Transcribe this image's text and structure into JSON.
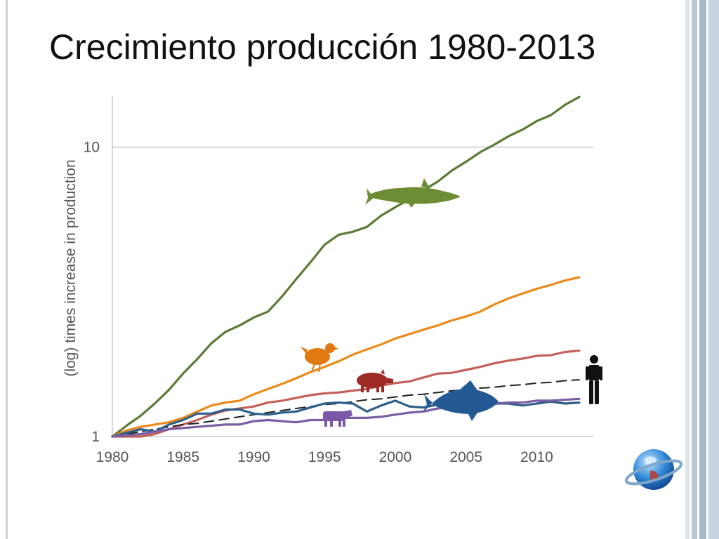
{
  "slide": {
    "title": "Crecimiento producción 1980-2013"
  },
  "chart_data": {
    "type": "line",
    "y_scale": "log",
    "ylabel": "(log) times increase in production",
    "xlabel": "",
    "xlim": [
      1980,
      2014
    ],
    "ylim": [
      1,
      15
    ],
    "x_ticks": [
      1980,
      1985,
      1990,
      1995,
      2000,
      2005,
      2010
    ],
    "y_ticks": [
      1,
      10
    ],
    "grid": "horizontal at y-ticks",
    "x": [
      1980,
      1981,
      1982,
      1983,
      1984,
      1985,
      1986,
      1987,
      1988,
      1989,
      1990,
      1991,
      1992,
      1993,
      1994,
      1995,
      1996,
      1997,
      1998,
      1999,
      2000,
      2001,
      2002,
      2003,
      2004,
      2005,
      2006,
      2007,
      2008,
      2009,
      2010,
      2011,
      2012,
      2013
    ],
    "series": [
      {
        "icon": "fish-icon",
        "color": "#5c7a36",
        "values": [
          1.0,
          1.09,
          1.18,
          1.3,
          1.45,
          1.65,
          1.85,
          2.1,
          2.3,
          2.42,
          2.58,
          2.7,
          3.05,
          3.5,
          4.0,
          4.6,
          4.98,
          5.1,
          5.3,
          5.8,
          6.2,
          6.6,
          7.1,
          7.6,
          8.3,
          8.9,
          9.6,
          10.2,
          10.9,
          11.5,
          12.3,
          12.9,
          14.0,
          14.9
        ]
      },
      {
        "icon": "chicken-icon",
        "color": "#e98a1b",
        "values": [
          1.0,
          1.05,
          1.08,
          1.1,
          1.12,
          1.16,
          1.22,
          1.28,
          1.31,
          1.33,
          1.4,
          1.46,
          1.52,
          1.59,
          1.67,
          1.74,
          1.82,
          1.92,
          2.0,
          2.08,
          2.18,
          2.26,
          2.34,
          2.42,
          2.52,
          2.6,
          2.7,
          2.86,
          3.0,
          3.12,
          3.24,
          3.34,
          3.46,
          3.55
        ]
      },
      {
        "icon": "pig-icon",
        "color": "#c4605a",
        "values": [
          1.0,
          1.0,
          1.0,
          1.02,
          1.06,
          1.1,
          1.14,
          1.19,
          1.23,
          1.25,
          1.27,
          1.31,
          1.33,
          1.36,
          1.39,
          1.41,
          1.42,
          1.44,
          1.46,
          1.5,
          1.53,
          1.55,
          1.6,
          1.65,
          1.66,
          1.7,
          1.74,
          1.79,
          1.83,
          1.86,
          1.9,
          1.91,
          1.96,
          1.98
        ]
      },
      {
        "icon": "human-icon",
        "color": "#222222",
        "dashed": true,
        "values": [
          1.0,
          1.02,
          1.04,
          1.06,
          1.08,
          1.1,
          1.11,
          1.13,
          1.15,
          1.17,
          1.19,
          1.21,
          1.23,
          1.25,
          1.27,
          1.29,
          1.3,
          1.32,
          1.34,
          1.35,
          1.37,
          1.39,
          1.4,
          1.42,
          1.44,
          1.45,
          1.47,
          1.48,
          1.5,
          1.51,
          1.53,
          1.54,
          1.56,
          1.57
        ]
      },
      {
        "icon": "big-fish-icon",
        "color": "#2e5f8a",
        "values": [
          1.0,
          1.03,
          1.06,
          1.04,
          1.1,
          1.14,
          1.2,
          1.2,
          1.24,
          1.24,
          1.2,
          1.19,
          1.21,
          1.22,
          1.26,
          1.3,
          1.31,
          1.3,
          1.22,
          1.28,
          1.33,
          1.27,
          1.26,
          1.29,
          1.28,
          1.3,
          1.32,
          1.3,
          1.3,
          1.28,
          1.3,
          1.32,
          1.3,
          1.31
        ]
      },
      {
        "icon": "cow-icon",
        "color": "#7a5ea4",
        "values": [
          1.0,
          1.01,
          1.02,
          1.04,
          1.06,
          1.07,
          1.08,
          1.09,
          1.1,
          1.1,
          1.13,
          1.14,
          1.13,
          1.12,
          1.14,
          1.14,
          1.16,
          1.16,
          1.16,
          1.17,
          1.19,
          1.21,
          1.22,
          1.25,
          1.26,
          1.28,
          1.29,
          1.3,
          1.31,
          1.31,
          1.33,
          1.33,
          1.34,
          1.35
        ]
      }
    ]
  }
}
